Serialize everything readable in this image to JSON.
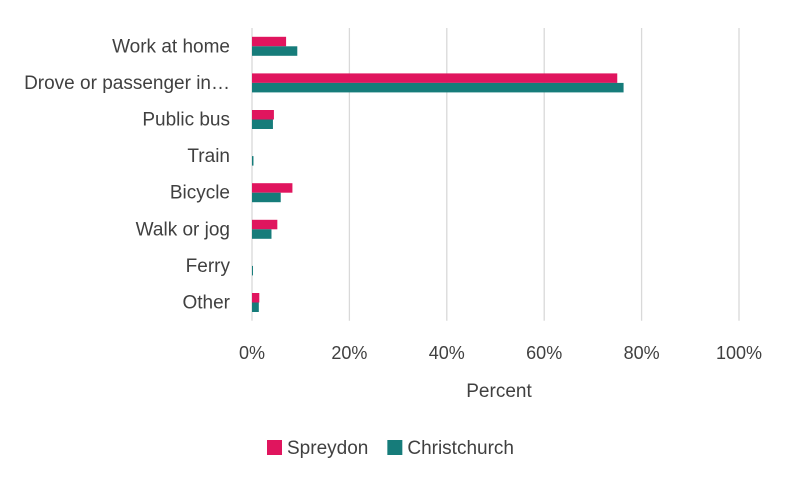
{
  "chart_data": {
    "type": "bar",
    "orientation": "horizontal",
    "categories": [
      "Work at home",
      "Drove or passenger in…",
      "Public bus",
      "Train",
      "Bicycle",
      "Walk or jog",
      "Ferry",
      "Other"
    ],
    "series": [
      {
        "name": "Spreydon",
        "color": "#e0155e",
        "values": [
          7.0,
          75.0,
          4.5,
          0.0,
          8.3,
          5.2,
          0.0,
          1.5
        ]
      },
      {
        "name": "Christchurch",
        "color": "#167c7a",
        "values": [
          9.3,
          76.3,
          4.3,
          0.3,
          5.9,
          4.0,
          0.2,
          1.4
        ]
      }
    ],
    "xlabel": "Percent",
    "xlim": [
      0,
      100
    ],
    "xticks": [
      "0%",
      "20%",
      "40%",
      "60%",
      "80%",
      "100%"
    ],
    "grid": "vertical",
    "legend": "bottom"
  }
}
